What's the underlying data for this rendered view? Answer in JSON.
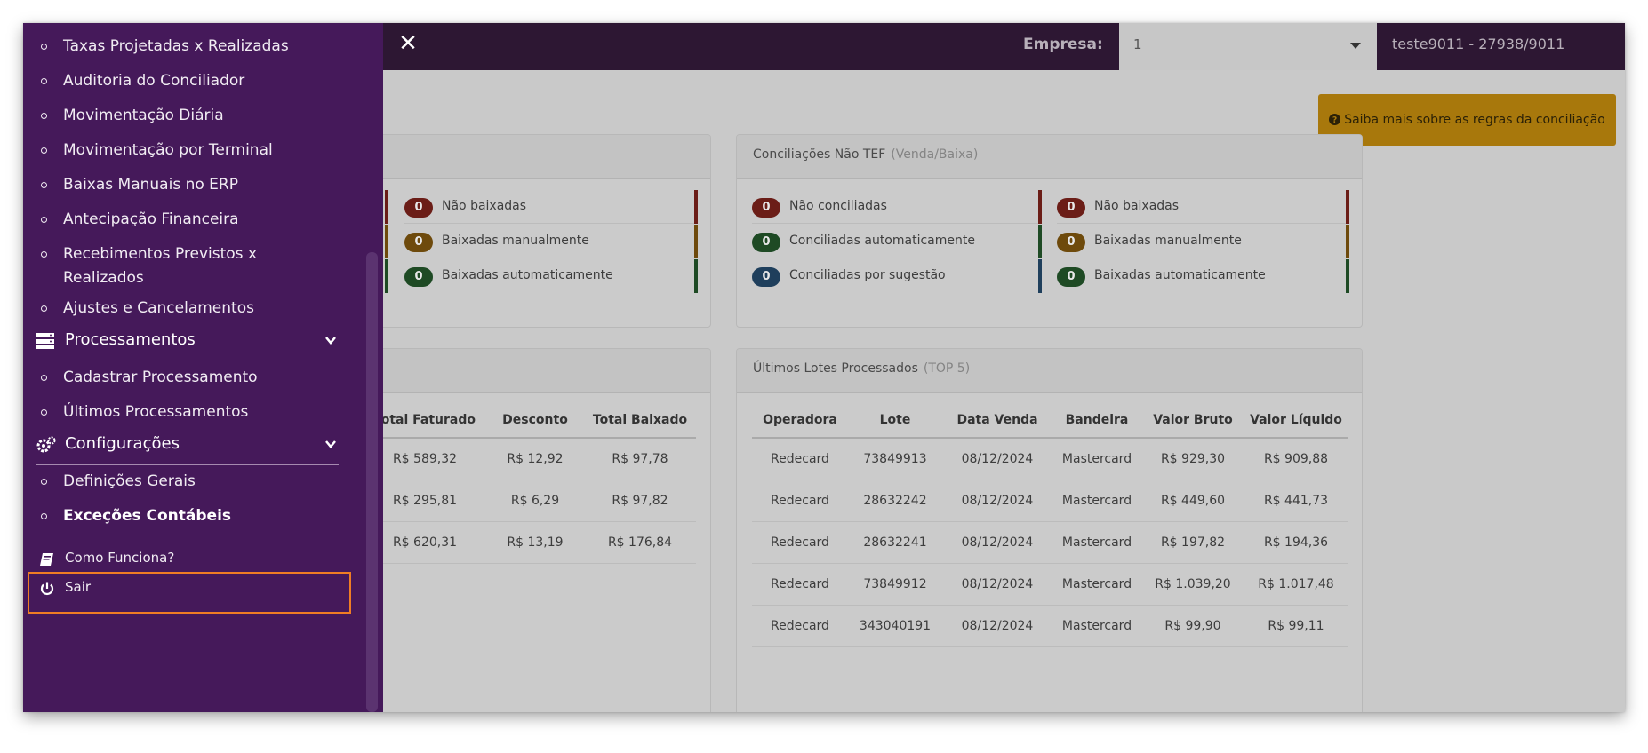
{
  "header": {
    "empresa_label": "Empresa:",
    "empresa_value": "1",
    "user_info": "teste9011 - 27938/9011"
  },
  "info_button": {
    "label": "Saiba mais sobre as regras da conciliação"
  },
  "tef_panel": {
    "rows": [
      {
        "count": "0",
        "label": "Não baixadas"
      },
      {
        "count": "0",
        "label": "Baixadas manualmente"
      },
      {
        "count": "0",
        "label": "Baixadas automaticamente"
      }
    ]
  },
  "non_tef_panel": {
    "title": "Conciliações Não TEF",
    "subtitle": "(Venda/Baixa)",
    "left_rows": [
      {
        "count": "0",
        "label": "Não conciliadas"
      },
      {
        "count": "0",
        "label": "Conciliadas automaticamente"
      },
      {
        "count": "0",
        "label": "Conciliadas por sugestão"
      }
    ],
    "right_rows": [
      {
        "count": "0",
        "label": "Não baixadas"
      },
      {
        "count": "0",
        "label": "Baixadas manualmente"
      },
      {
        "count": "0",
        "label": "Baixadas automaticamente"
      }
    ]
  },
  "left_table": {
    "headers": [
      "Total Faturado",
      "Desconto",
      "Total Baixado"
    ],
    "rows": [
      [
        "R$ 589,32",
        "R$ 12,92",
        "R$ 97,78"
      ],
      [
        "R$ 295,81",
        "R$ 6,29",
        "R$ 97,82"
      ],
      [
        "R$ 620,31",
        "R$ 13,19",
        "R$ 176,84"
      ]
    ]
  },
  "lotes_panel": {
    "title": "Últimos Lotes Processados",
    "subtitle": "(TOP 5)",
    "headers": [
      "Operadora",
      "Lote",
      "Data Venda",
      "Bandeira",
      "Valor Bruto",
      "Valor Líquido"
    ],
    "rows": [
      [
        "Redecard",
        "73849913",
        "08/12/2024",
        "Mastercard",
        "R$ 929,30",
        "R$ 909,88"
      ],
      [
        "Redecard",
        "28632242",
        "08/12/2024",
        "Mastercard",
        "R$ 449,60",
        "R$ 441,73"
      ],
      [
        "Redecard",
        "28632241",
        "08/12/2024",
        "Mastercard",
        "R$ 197,82",
        "R$ 194,36"
      ],
      [
        "Redecard",
        "73849912",
        "08/12/2024",
        "Mastercard",
        "R$ 1.039,20",
        "R$ 1.017,48"
      ],
      [
        "Redecard",
        "343040191",
        "08/12/2024",
        "Mastercard",
        "R$ 99,90",
        "R$ 99,11"
      ]
    ]
  },
  "sidebar": {
    "items_top": [
      {
        "label": "Taxas Projetadas x Realizadas"
      },
      {
        "label": "Auditoria do Conciliador"
      },
      {
        "label": "Movimentação Diária"
      },
      {
        "label": "Movimentação por Terminal"
      },
      {
        "label": "Baixas Manuais no ERP"
      },
      {
        "label": "Antecipação Financeira"
      },
      {
        "label": "Recebimentos Previstos x Realizados"
      },
      {
        "label": "Ajustes e Cancelamentos"
      }
    ],
    "processamentos": {
      "label": "Processamentos",
      "items": [
        {
          "label": "Cadastrar Processamento"
        },
        {
          "label": "Últimos Processamentos"
        }
      ]
    },
    "configuracoes": {
      "label": "Configurações",
      "items": [
        {
          "label": "Definições Gerais"
        },
        {
          "label": "Exceções Contábeis"
        }
      ]
    },
    "footer": [
      {
        "label": "Como Funciona?",
        "icon": "book-icon"
      },
      {
        "label": "Sair",
        "icon": "power-icon"
      }
    ]
  }
}
